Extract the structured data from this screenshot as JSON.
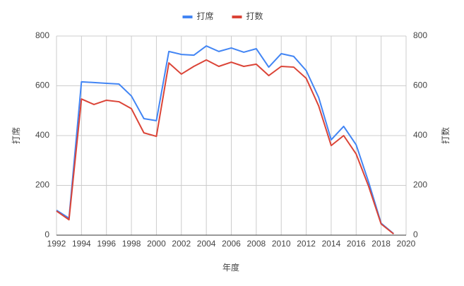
{
  "chart_data": {
    "type": "line",
    "x_label": "年度",
    "y_label": "打席",
    "y2_label": "打数",
    "x": [
      1992,
      1993,
      1994,
      1995,
      1996,
      1997,
      1998,
      1999,
      2000,
      2001,
      2002,
      2003,
      2004,
      2005,
      2006,
      2007,
      2008,
      2009,
      2010,
      2011,
      2012,
      2013,
      2014,
      2015,
      2016,
      2017,
      2018,
      2019
    ],
    "series": [
      {
        "name": "打席",
        "color": "#4285f4",
        "values": [
          100,
          68,
          616,
          613,
          610,
          607,
          559,
          468,
          460,
          738,
          726,
          723,
          760,
          738,
          752,
          735,
          749,
          675,
          729,
          718,
          661,
          553,
          383,
          437,
          363,
          213,
          48,
          6
        ]
      },
      {
        "name": "打数",
        "color": "#db4437",
        "axis": "y2",
        "values": [
          97,
          62,
          547,
          525,
          542,
          536,
          508,
          411,
          397,
          692,
          647,
          678,
          704,
          678,
          695,
          678,
          687,
          641,
          678,
          675,
          630,
          519,
          360,
          400,
          326,
          196,
          45,
          5
        ]
      }
    ],
    "xlim": [
      1992,
      2020
    ],
    "xticks": [
      1992,
      1994,
      1996,
      1998,
      2000,
      2002,
      2004,
      2006,
      2008,
      2010,
      2012,
      2014,
      2016,
      2018,
      2020
    ],
    "ylim": [
      0,
      800
    ],
    "yticks": [
      0,
      200,
      400,
      600,
      800
    ],
    "y2lim": [
      0,
      800
    ],
    "y2ticks": [
      0,
      200,
      400,
      600,
      800
    ],
    "grid": true,
    "legend": "top"
  }
}
